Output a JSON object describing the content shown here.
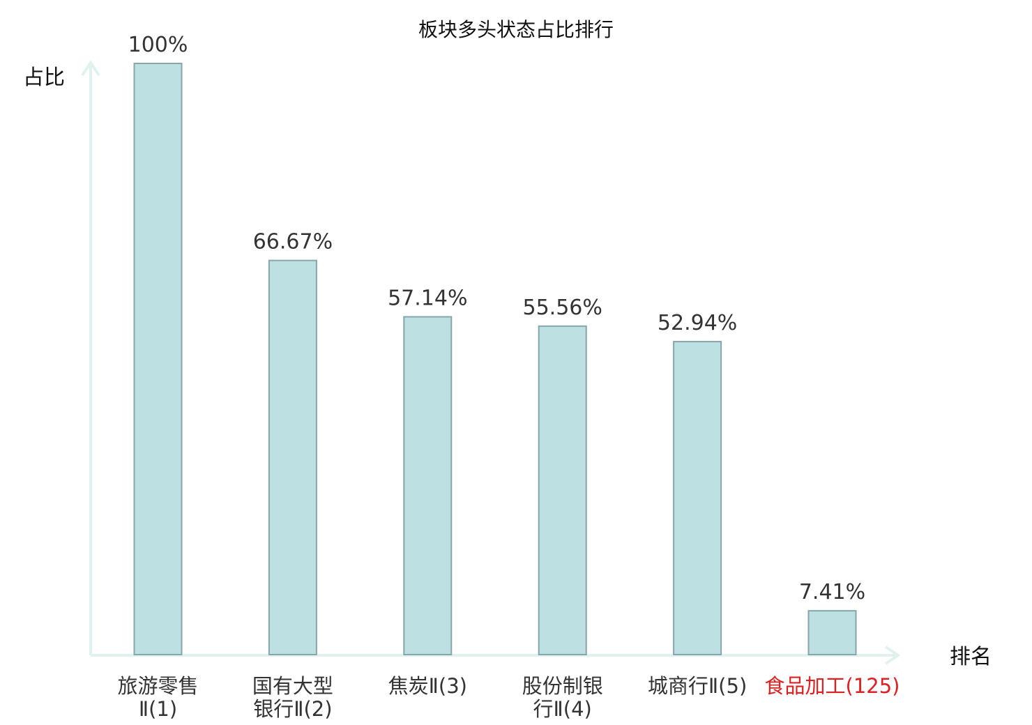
{
  "chart_data": {
    "type": "bar",
    "title": "板块多头状态占比排行",
    "ylabel": "占比",
    "xlabel": "排名",
    "ylim": [
      0,
      100
    ],
    "categories": [
      {
        "name_lines": [
          "旅游零售",
          "Ⅱ(1)"
        ],
        "highlight": false
      },
      {
        "name_lines": [
          "国有大型",
          "银行Ⅱ(2)"
        ],
        "highlight": false
      },
      {
        "name_lines": [
          "焦炭Ⅱ(3)"
        ],
        "highlight": false
      },
      {
        "name_lines": [
          "股份制银",
          "行Ⅱ(4)"
        ],
        "highlight": false
      },
      {
        "name_lines": [
          "城商行Ⅱ(5)"
        ],
        "highlight": false
      },
      {
        "name_lines": [
          "食品加工(125)"
        ],
        "highlight": true
      }
    ],
    "values": [
      100,
      66.67,
      57.14,
      55.56,
      52.94,
      7.41
    ],
    "value_labels": [
      "100%",
      "66.67%",
      "57.14%",
      "55.56%",
      "52.94%",
      "7.41%"
    ],
    "grid": false,
    "legend": "none",
    "colors": {
      "bar_fill": "#bde0e3",
      "bar_stroke": "#86a6a9",
      "axis": "#e0f2ef",
      "highlight_text": "#e02020",
      "label_text": "#333333"
    }
  }
}
